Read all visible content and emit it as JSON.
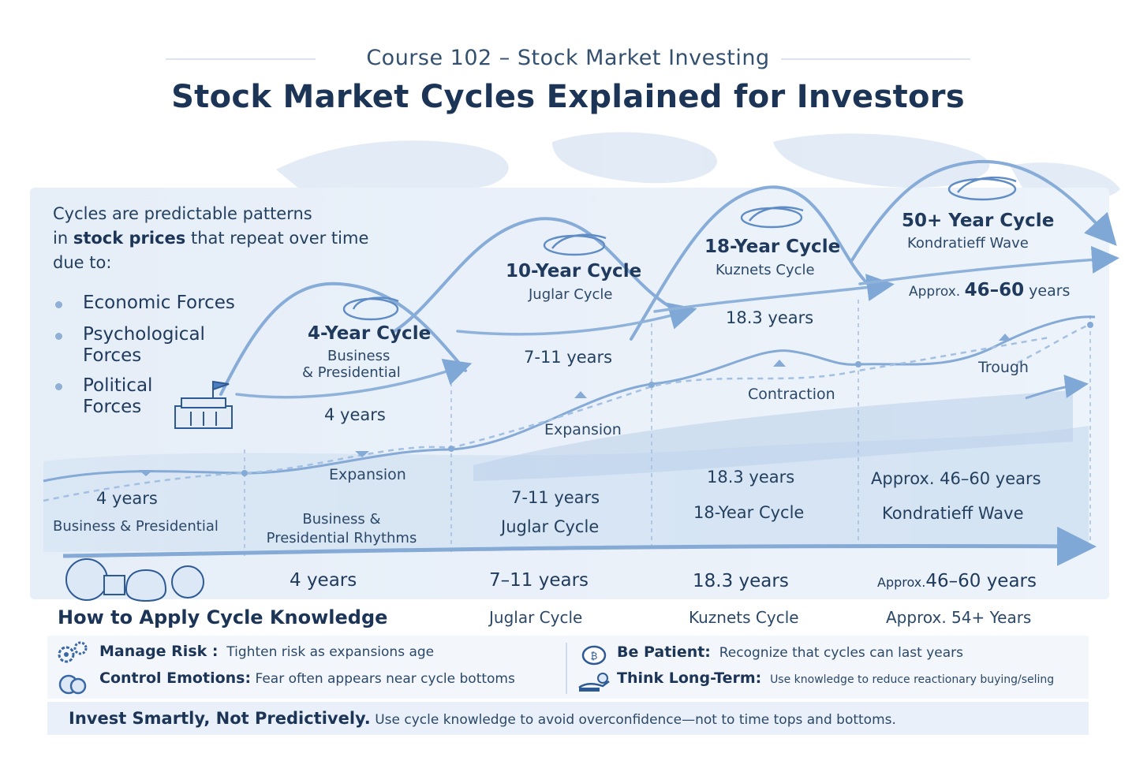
{
  "header": {
    "course": "Course 102 – Stock Market Investing",
    "title": "Stock Market Cycles Explained for Investors"
  },
  "intro": {
    "line1": "Cycles are predictable patterns",
    "line2_pre": "in ",
    "line2_bold": "stock prices",
    "line2_post": " that repeat over time",
    "line3": "due to:"
  },
  "forces": [
    {
      "label": "Economic Forces"
    },
    {
      "label": "Psychological Forces"
    },
    {
      "label": "Political Forces"
    }
  ],
  "cycles": [
    {
      "title": "4-Year Cycle",
      "sub1": "Business",
      "sub2": "& Presidential",
      "duration": "4 years"
    },
    {
      "title": "10-Year Cycle",
      "sub1": "Juglar Cycle",
      "duration": "7-11 years"
    },
    {
      "title": "18-Year Cycle",
      "sub1": "Kuznets Cycle",
      "duration": "18.3 years"
    },
    {
      "title": "50+ Year Cycle",
      "sub1": "Kondratieff Wave",
      "duration_pre": "Approx. ",
      "duration_val": "46–60",
      "duration_post": " years"
    }
  ],
  "phases": {
    "expansion_upper": "Expansion",
    "expansion_lower": "Expansion",
    "contraction": "Contraction",
    "trough": "Trough"
  },
  "middle_band": {
    "col1_dur": "4 years",
    "col1_name": "Business & Presidential",
    "col2_line1": "Business &",
    "col2_line2": "Presidential Rhythms",
    "col3_dur": "7-11 years",
    "col3_name": "Juglar Cycle",
    "col4_dur": "18.3 years",
    "col4_name": "18-Year Cycle",
    "col5_dur": "Approx. 46–60 years",
    "col5_name": "Kondratieff Wave"
  },
  "bottom_row": {
    "d1": "4 years",
    "d2": "7–11 years",
    "d3": "18.3 years",
    "d4_pre": "Approx.",
    "d4_val": "46–60 years",
    "n2": "Juglar Cycle",
    "n3": "Kuznets Cycle",
    "n4": "Approx. 54+ Years"
  },
  "apply": {
    "title": "How to Apply Cycle Knowledge",
    "tips": [
      {
        "label": "Manage Risk :",
        "text": "Tighten risk as expansions age",
        "icon": "gears-icon"
      },
      {
        "label": "Control Emotions:",
        "text": "Fear often appears near cycle bottoms",
        "icon": "emotion-icon"
      },
      {
        "label": "Be Patient:",
        "text": "Recognize that cycles can last years",
        "icon": "coin-icon"
      },
      {
        "label": "Think Long-Term:",
        "text": "Use knowledge to reduce reactionary buying/seling",
        "icon": "hand-plant-icon"
      }
    ]
  },
  "footer": {
    "bold": "Invest Smartly, Not Predictively.",
    "text": " Use cycle knowledge to avoid overconfidence—not to time tops and bottoms."
  },
  "colors": {
    "navy": "#1c3557",
    "wave_blue": "#7fa8d6",
    "light_blue": "#dbe7f5"
  }
}
